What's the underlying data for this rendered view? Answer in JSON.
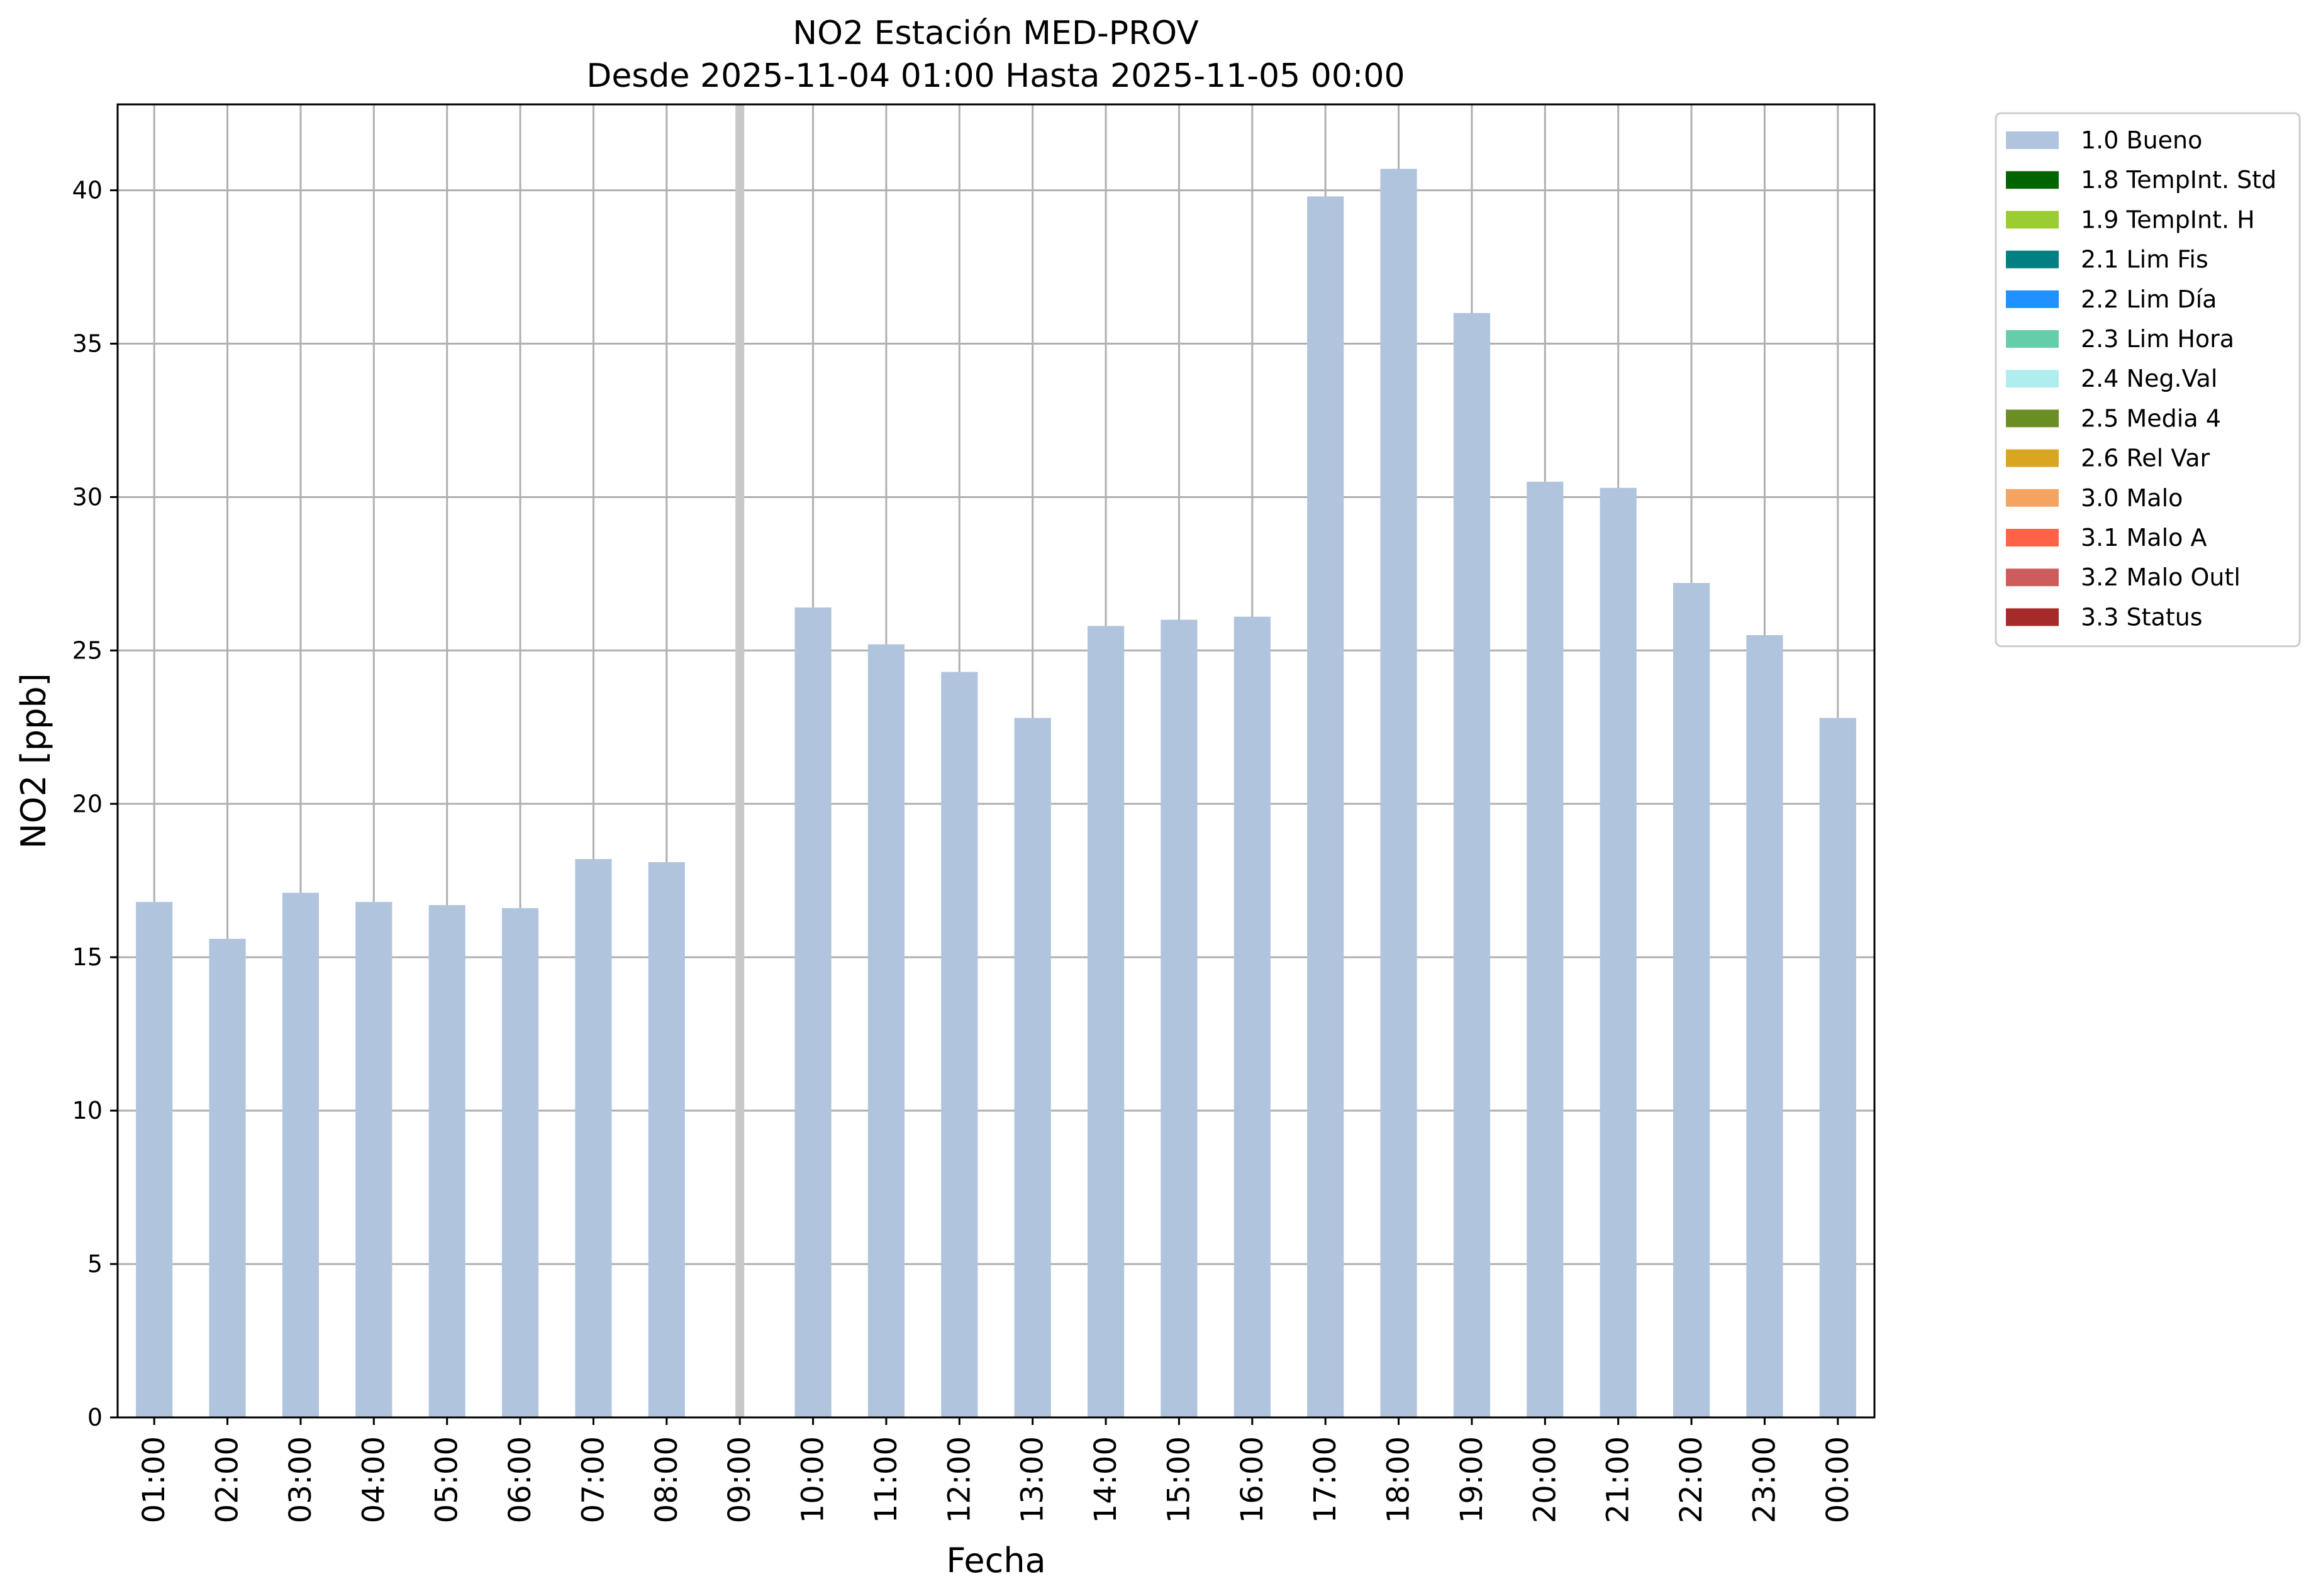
{
  "chart_data": {
    "type": "bar",
    "title": "NO2 Estación MED-PROV",
    "subtitle": "Desde 2025-11-04 01:00 Hasta 2025-11-05 00:00",
    "xlabel": "Fecha",
    "ylabel": "NO2 [ppb]",
    "ylim": [
      0,
      42.8
    ],
    "yticks": [
      0,
      5,
      10,
      15,
      20,
      25,
      30,
      35,
      40
    ],
    "grid": true,
    "legend_position": "outside-right-top",
    "categories": [
      "01:00",
      "02:00",
      "03:00",
      "04:00",
      "05:00",
      "06:00",
      "07:00",
      "08:00",
      "09:00",
      "10:00",
      "11:00",
      "12:00",
      "13:00",
      "14:00",
      "15:00",
      "16:00",
      "17:00",
      "18:00",
      "19:00",
      "20:00",
      "21:00",
      "22:00",
      "23:00",
      "00:00"
    ],
    "missing_highlight_category": "09:00",
    "series": [
      {
        "name": "1.0 Bueno",
        "color": "#b0c4de",
        "values": [
          16.8,
          15.6,
          17.1,
          16.8,
          16.7,
          16.6,
          18.2,
          18.1,
          null,
          26.4,
          25.2,
          24.3,
          22.8,
          25.8,
          26.0,
          26.1,
          39.8,
          40.7,
          36.0,
          30.5,
          30.3,
          27.2,
          25.5,
          22.8
        ]
      }
    ],
    "legend": [
      {
        "label": "1.0 Bueno",
        "color": "#b0c4de"
      },
      {
        "label": "1.8 TempInt. Std",
        "color": "#006400"
      },
      {
        "label": "1.9 TempInt. H",
        "color": "#9acd32"
      },
      {
        "label": "2.1 Lim Fis",
        "color": "#008080"
      },
      {
        "label": "2.2 Lim Día",
        "color": "#1e90ff"
      },
      {
        "label": "2.3 Lim Hora",
        "color": "#66cdaa"
      },
      {
        "label": "2.4 Neg.Val",
        "color": "#afeeee"
      },
      {
        "label": "2.5 Media 4",
        "color": "#6b8e23"
      },
      {
        "label": "2.6 Rel Var",
        "color": "#daa520"
      },
      {
        "label": "3.0 Malo",
        "color": "#f4a460"
      },
      {
        "label": "3.1 Malo A",
        "color": "#ff6347"
      },
      {
        "label": "3.2 Malo Outl",
        "color": "#cd5c5c"
      },
      {
        "label": "3.3 Status",
        "color": "#a52a2a"
      }
    ]
  }
}
